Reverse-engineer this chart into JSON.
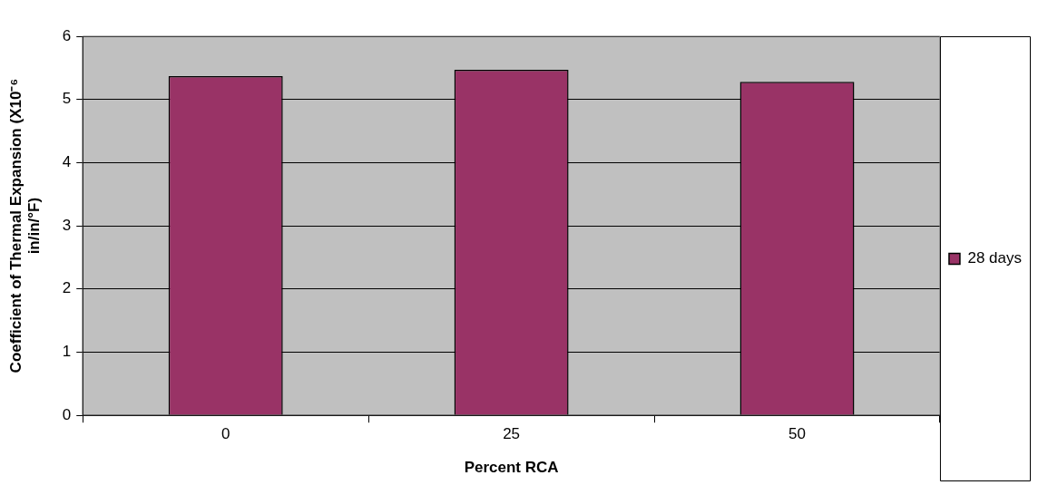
{
  "chart_data": {
    "type": "bar",
    "xlabel": "Percent RCA",
    "ylabel": "Coefficient of Thermal Expansion (X10⁻⁶ in/in/°F)",
    "categories": [
      "0",
      "25",
      "50"
    ],
    "series": [
      {
        "name": "28 days",
        "color": "#993366",
        "values": [
          5.37,
          5.47,
          5.28
        ]
      }
    ],
    "ylim": [
      0,
      6
    ],
    "yticks": [
      0,
      1,
      2,
      3,
      4,
      5,
      6
    ],
    "grid": "y",
    "legend": "right"
  }
}
